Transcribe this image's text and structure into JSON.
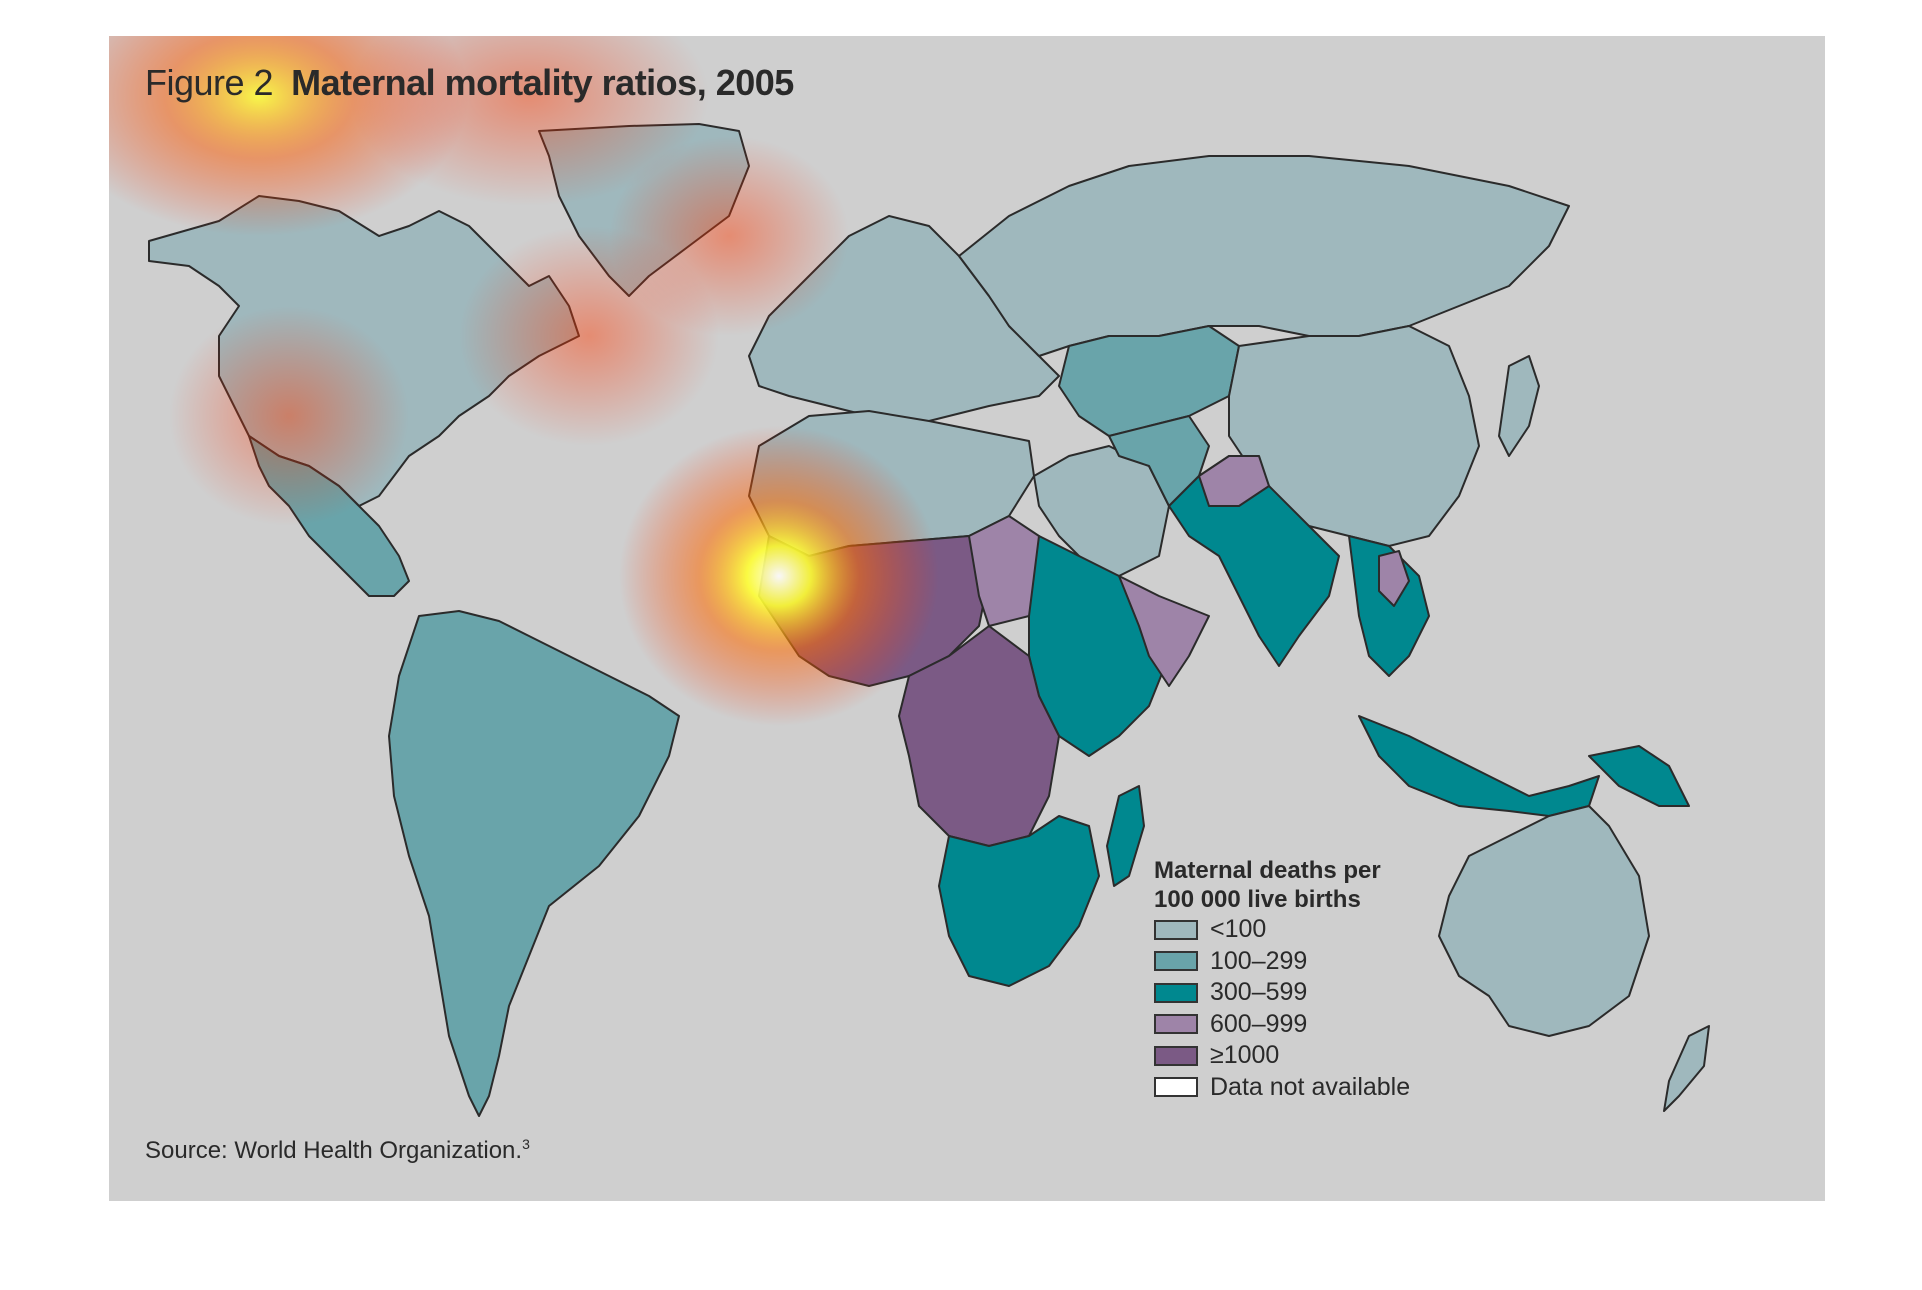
{
  "title": {
    "figure_label": "Figure 2",
    "text": "Maternal mortality ratios, 2005"
  },
  "legend": {
    "title_line1": "Maternal deaths per",
    "title_line2": "100 000 live births",
    "items": [
      {
        "label": "<100",
        "color": "#9fb8bd"
      },
      {
        "label": "100–299",
        "color": "#69a4aa"
      },
      {
        "label": "300–599",
        "color": "#00888f"
      },
      {
        "label": "600–999",
        "color": "#9e84a8"
      },
      {
        "label": "≥1000",
        "color": "#7b5a85"
      },
      {
        "label": "Data not available",
        "color": "#ffffff"
      }
    ]
  },
  "source": {
    "text": "Source: World Health Organization.",
    "ref": "3"
  },
  "colors": {
    "panel_background": "#cfcfcf",
    "border": "#2b2b2b"
  }
}
